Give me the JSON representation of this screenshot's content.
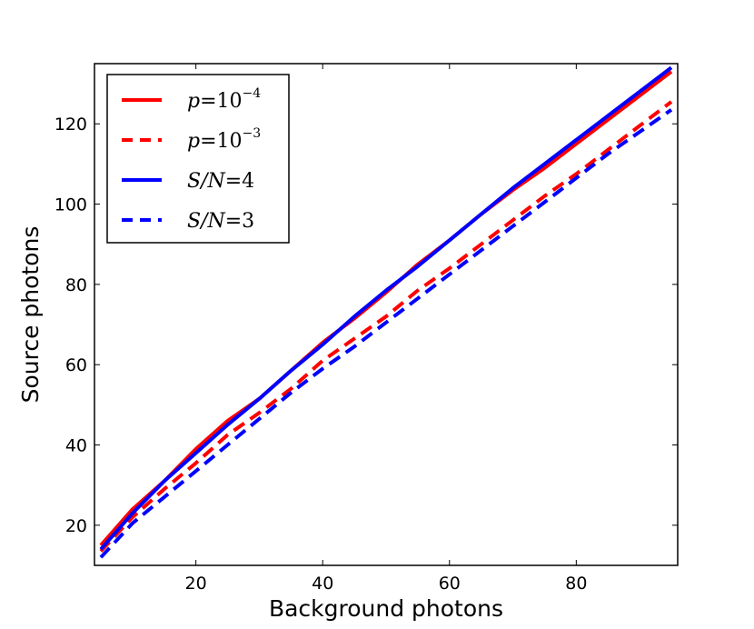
{
  "chart_data": {
    "type": "line",
    "title": "",
    "xlabel": "Background photons",
    "ylabel": "Source photons",
    "xlim": [
      4,
      96
    ],
    "ylim": [
      10,
      135
    ],
    "xticks": [
      20,
      40,
      60,
      80
    ],
    "yticks": [
      20,
      40,
      60,
      80,
      100,
      120
    ],
    "grid": false,
    "legend_position": "top-left",
    "x": [
      5,
      10,
      15,
      20,
      25,
      30,
      35,
      40,
      45,
      50,
      55,
      60,
      65,
      70,
      75,
      80,
      85,
      90,
      95
    ],
    "series": [
      {
        "name": "p=10^-4",
        "legend_parts": [
          "p",
          "=10",
          "−4"
        ],
        "color": "#ff0000",
        "style": "solid",
        "values": [
          15,
          24,
          31,
          39,
          46,
          51.5,
          58.5,
          65.5,
          71.5,
          78,
          85,
          91,
          97.5,
          103.5,
          109,
          115,
          121,
          127,
          133
        ]
      },
      {
        "name": "p=10^-3",
        "legend_parts": [
          "p",
          "=10",
          "−3"
        ],
        "color": "#ff0000",
        "style": "dashed",
        "values": [
          13.5,
          22,
          29,
          35.5,
          42.5,
          48,
          54,
          61,
          66.5,
          72,
          78.5,
          84,
          90,
          96,
          102,
          107.5,
          113.5,
          119.5,
          125.5
        ]
      },
      {
        "name": "S/N=4",
        "legend_parts": [
          "S/N",
          "=4"
        ],
        "color": "#0000ff",
        "style": "solid",
        "values": [
          14,
          23,
          31,
          38,
          45,
          51.5,
          58.5,
          65,
          72,
          78.5,
          84.5,
          91,
          97.5,
          104,
          110,
          116,
          122,
          128,
          134
        ]
      },
      {
        "name": "S/N=3",
        "legend_parts": [
          "S/N",
          "=3"
        ],
        "color": "#0000ff",
        "style": "dashed",
        "values": [
          12,
          20.5,
          27,
          33.5,
          40,
          46.5,
          53,
          59,
          64.5,
          70.5,
          76.5,
          82.5,
          88.5,
          94.5,
          100.5,
          106.5,
          112.5,
          118,
          123.5
        ]
      }
    ]
  }
}
